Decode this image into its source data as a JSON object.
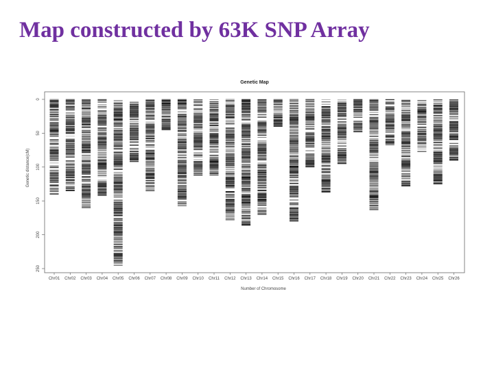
{
  "slide": {
    "title": "Map constructed by 63K SNP Array",
    "title_color": "#7030a0"
  },
  "chart_data": {
    "type": "line",
    "title": "Genetic Map",
    "xlabel": "Number of Chromosome",
    "ylabel": "Genetic distance(cM)",
    "ylim": [
      0,
      250
    ],
    "y_inverted": true,
    "yticks": [
      0,
      50,
      100,
      150,
      200,
      250
    ],
    "yticklabels": [
      "0",
      "50",
      "100",
      "150",
      "200",
      "250"
    ],
    "grid": false,
    "mark_color": "#000000",
    "categories": [
      "Chr01",
      "Chr02",
      "Chr03",
      "Chr04",
      "Chr05",
      "Chr06",
      "Chr07",
      "Chr08",
      "Chr09",
      "Chr10",
      "Chr11",
      "Chr12",
      "Chr13",
      "Chr14",
      "Chr15",
      "Chr16",
      "Chr17",
      "Chr18",
      "Chr19",
      "Chr20",
      "Chr21",
      "Chr22",
      "Chr23",
      "Chr24",
      "Chr25",
      "Chr26"
    ],
    "chromosome_lengths_cM": [
      140,
      135,
      160,
      142,
      245,
      92,
      135,
      45,
      157,
      112,
      112,
      178,
      186,
      170,
      40,
      180,
      100,
      137,
      95,
      48,
      163,
      67,
      128,
      77,
      125,
      90
    ]
  }
}
